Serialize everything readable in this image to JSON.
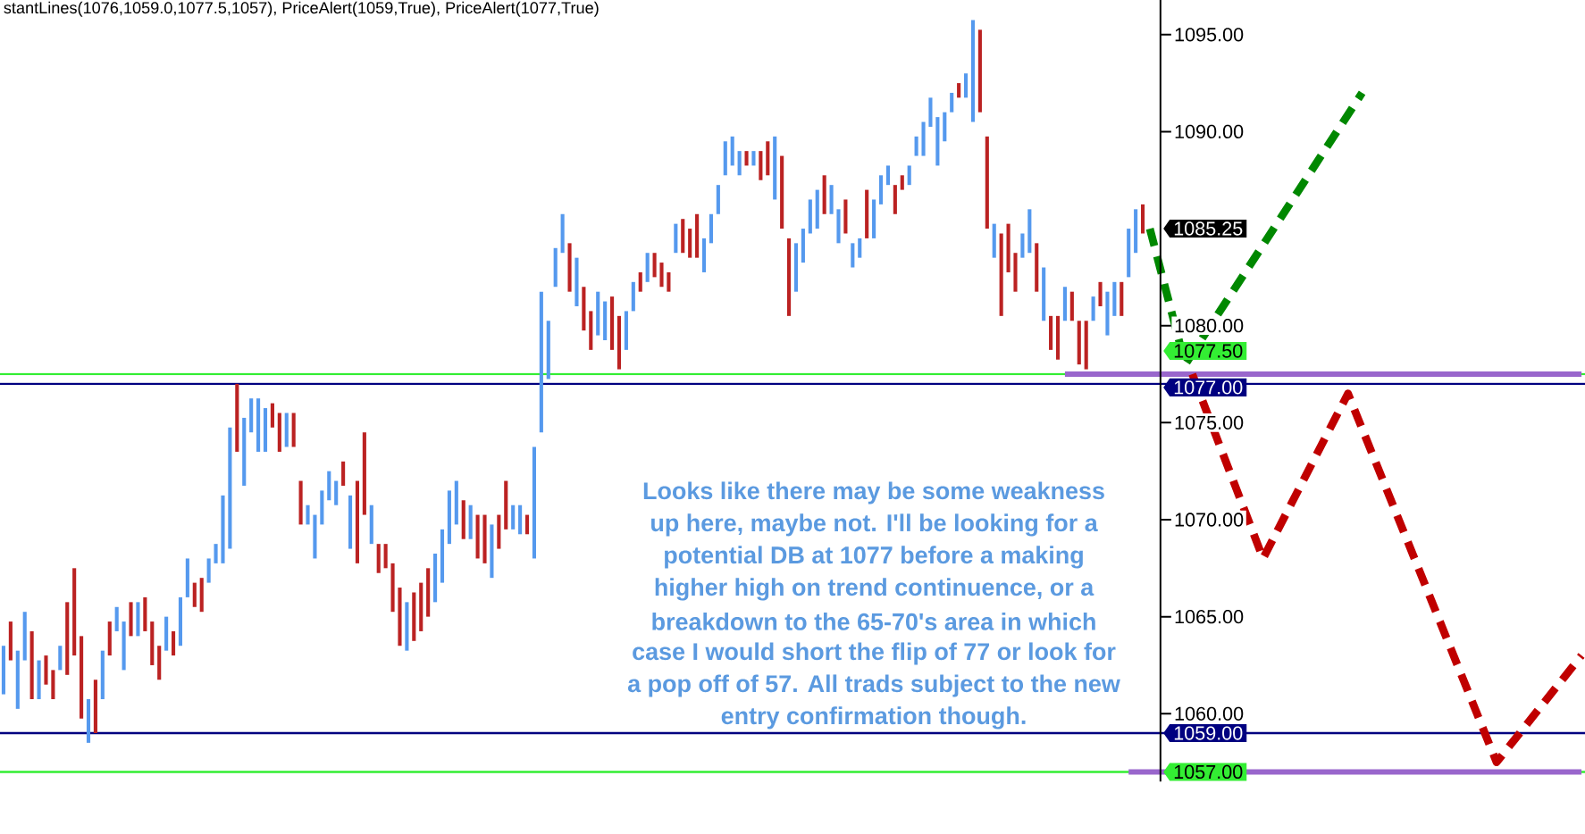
{
  "chart_data": {
    "type": "bar",
    "annotations": [
      "stantLines(1076,1059.0,1077.5,1057), PriceAlert(1059,True), PriceAlert(1077,True)",
      "Looks like there may be some weakness",
      "up here, maybe not. I'll be looking for a",
      "potential DB at 1077 before a making",
      "higher high on trend continuence, or a",
      "breakdown to the 65-70's area in which",
      "case I would short the flip of 77 or look for",
      "a pop off of 57. All trads subject to the new",
      "entry confirmation though.",
      "1085.25"
    ],
    "categories": [
      null,
      null,
      null,
      null,
      null,
      null,
      null,
      null,
      null,
      null,
      null,
      null,
      null,
      null,
      null,
      null,
      null,
      null,
      null,
      null,
      null,
      null,
      null,
      null,
      null,
      null,
      null,
      null,
      null,
      null,
      null,
      null,
      null,
      null,
      null,
      null,
      null,
      null,
      null,
      null,
      null,
      null,
      null,
      null,
      null,
      null,
      null,
      null,
      null,
      null,
      null,
      null,
      null,
      null,
      null,
      null,
      null,
      null,
      null,
      null,
      null,
      null,
      null,
      null,
      null,
      null,
      null,
      null,
      null,
      null,
      null,
      null,
      null,
      null,
      null,
      null,
      null,
      null,
      null,
      null,
      null,
      null,
      null,
      null,
      null,
      null,
      null,
      null,
      null,
      null,
      null,
      null,
      null,
      null,
      null,
      null,
      null,
      null,
      null,
      null,
      null,
      null,
      null,
      null,
      null,
      null,
      null,
      null,
      null,
      null,
      null,
      null,
      null,
      null,
      null,
      null,
      null,
      null,
      null,
      null,
      null,
      null,
      null,
      null,
      null,
      null,
      null,
      null,
      null,
      null,
      null,
      null,
      null,
      null,
      null,
      null,
      null,
      null,
      null,
      null,
      null,
      null,
      null,
      null,
      null,
      null,
      null,
      null,
      null,
      null,
      null,
      null,
      null,
      null,
      null,
      null,
      null,
      null,
      null,
      null,
      null,
      null,
      null,
      null,
      null,
      null,
      null,
      null,
      null,
      null,
      null,
      null,
      null,
      null,
      null,
      null,
      null,
      null,
      null,
      null,
      null,
      null,
      null,
      null,
      null,
      null,
      null,
      null,
      null,
      null,
      null,
      null,
      null,
      null,
      null,
      null,
      null,
      null,
      null,
      null,
      null,
      null,
      null,
      null,
      null,
      null,
      null,
      null,
      null,
      null,
      null,
      null,
      null,
      null,
      null,
      null,
      null,
      null,
      null,
      null,
      null,
      null,
      null,
      null
    ],
    "ylim": [
      1056.5,
      1097
    ],
    "yticks": [
      {
        "value": 1060,
        "label": "1060.00"
      },
      {
        "value": 1065,
        "label": "1065.00"
      },
      {
        "value": 1070,
        "label": "1070.00"
      },
      {
        "value": 1075,
        "label": "1075.00"
      },
      {
        "value": 1080,
        "label": "1080.00"
      },
      {
        "value": 1090,
        "label": "1090.00"
      },
      {
        "value": 1095,
        "label": "1095.00"
      }
    ],
    "tick_labels": "y",
    "ref_lines": [
      {
        "axis": "y",
        "value": 1077.5,
        "label": "1077.50",
        "color": "#33ee33"
      },
      {
        "axis": "y",
        "value": 1077,
        "label": "1077.00",
        "color": "#000080"
      },
      {
        "axis": "y",
        "value": 1059,
        "label": "1059.00",
        "color": "#000080"
      },
      {
        "axis": "y",
        "value": 1057,
        "label": "1057.00",
        "color": "#33ee33"
      }
    ],
    "series": [
      {
        "base": [
          1061,
          1062.75,
          1060.25,
          1062.75,
          1060.75,
          1060.75,
          1061.5,
          1060.75,
          1062.25,
          1062,
          1063,
          1059.75,
          1058.5,
          1059,
          1060.75,
          1063,
          1064.25,
          1062.25,
          1064,
          1064,
          1064.25,
          1062.5,
          1061.75,
          1063.25,
          1063,
          1063.5,
          1066,
          1065.5,
          1065.25,
          1066.75,
          1067.75,
          1067.75,
          1068.5,
          1073.5,
          1071.75,
          1074.5,
          1073.5,
          1073.5,
          1074.75,
          1073.5,
          1073.75,
          1073.75,
          1069.75,
          1069.75,
          1068,
          1069.75,
          1071,
          1070.75,
          1071.75,
          1068.5,
          1067.75,
          1070.25,
          1068.75,
          1067.25,
          1067.5,
          1065.25,
          1063.5,
          1063.25,
          1063.75,
          1064.25,
          1065,
          1065.75,
          1066.75,
          1068.75,
          1069.75,
          1069,
          1069,
          1068,
          1067.75,
          1067,
          1068.5,
          1069.5,
          1069.5,
          1069.25,
          1069.25,
          1068,
          1074.5,
          1077.25,
          1082,
          1083.75,
          1081.75,
          1081,
          1079.75,
          1078.75,
          1079.5,
          1079.25,
          1078.75,
          1077.75,
          1078.75,
          1080.75,
          1081.75,
          1082.25,
          1082.5,
          1082,
          1081.75,
          1083.75,
          1083.75,
          1083.5,
          1083.5,
          1082.75,
          1084.25,
          1085.75,
          1087.75,
          1088.25,
          1087.75,
          1088.25,
          1088.25,
          1087.5,
          1087.75,
          1086.5,
          1085,
          1080.5,
          1081.75,
          1083.25,
          1084.75,
          1085,
          1085.75,
          1085.75,
          1084.25,
          1084.75,
          1083,
          1083.5,
          1084.5,
          1084.5,
          1086.25,
          1087.25,
          1085.75,
          1087,
          1087.25,
          1088.75,
          1088.75,
          1090.25,
          1088.25,
          1089.5,
          1091,
          1091.75,
          1091.75,
          1090.5,
          1091,
          1085,
          1083.5,
          1080.5,
          1082.75,
          1081.75,
          1083.5,
          1083.75,
          1081.75,
          1080.25,
          1078.75,
          1078.25,
          1080.25,
          1080.25,
          1078,
          1077.75,
          1080.25,
          1081,
          1079.5,
          1080.5,
          1080.5,
          1082.5,
          1083.75,
          1084.75,
          null,
          null,
          null,
          null,
          null,
          null,
          null,
          null,
          null,
          null,
          null,
          null,
          null,
          null,
          null,
          null,
          null,
          null,
          null,
          null,
          null,
          null,
          null,
          null,
          null,
          null,
          null,
          null,
          null,
          null,
          null,
          null,
          null,
          null,
          null,
          null,
          null,
          null,
          null,
          null,
          null,
          null,
          null,
          null,
          null,
          null,
          null,
          null,
          null,
          null,
          null,
          null,
          null,
          null,
          null,
          null,
          null,
          null,
          null,
          null,
          null,
          null
        ],
        "values": [
          2.5,
          2,
          3,
          2.5,
          3.5,
          2,
          1.5,
          1.5,
          1.25,
          3.75,
          4.5,
          4.25,
          2.25,
          2.75,
          2.5,
          1.75,
          1.25,
          2.5,
          1.75,
          1.75,
          1.75,
          2.25,
          1.75,
          1.75,
          1.25,
          2.5,
          2,
          1.25,
          1.75,
          1.25,
          1,
          3.5,
          6.25,
          3.5,
          3.5,
          1.75,
          2.75,
          2.25,
          1.25,
          2,
          1.75,
          1.75,
          2.25,
          1,
          2.25,
          1.75,
          1.5,
          1.25,
          1.25,
          2.75,
          4.25,
          4.25,
          2,
          1.5,
          1.25,
          2.5,
          3,
          2.5,
          2.5,
          2.5,
          2.5,
          2.5,
          2.75,
          2.75,
          2.25,
          2,
          1.75,
          2.25,
          2.5,
          2.75,
          1.75,
          2.5,
          1.25,
          1.5,
          1,
          5.75,
          7.25,
          3,
          2,
          2,
          2.5,
          2.5,
          2.25,
          2,
          2.25,
          2,
          2.75,
          2.75,
          2,
          1.5,
          1,
          1.5,
          1.25,
          1.25,
          1,
          1.5,
          1.75,
          1.5,
          2.25,
          1.75,
          1.5,
          1.5,
          1.75,
          1.5,
          1.25,
          0.75,
          0.75,
          1.5,
          1.75,
          3.25,
          3.75,
          4,
          2.5,
          1.75,
          1.75,
          2,
          2,
          1.5,
          1.75,
          1.75,
          1.25,
          1,
          2.5,
          2,
          1.5,
          1,
          1.5,
          0.75,
          1,
          1,
          1.75,
          1.5,
          2.5,
          1.5,
          1,
          0.75,
          1.25,
          5.25,
          4.25,
          4.75,
          1.75,
          4.25,
          2.5,
          2,
          1.25,
          2.25,
          2.5,
          2.75,
          1.75,
          2.25,
          1.75,
          1.5,
          2.25,
          2.5,
          1.25,
          1.25,
          2.25,
          1.75,
          1.75,
          2.5,
          2.25,
          1.5,
          null,
          null,
          null,
          null,
          null,
          null,
          null,
          null,
          null,
          null,
          null,
          null,
          null,
          null,
          null,
          null,
          null,
          null,
          null,
          null,
          null,
          null,
          null,
          null,
          null,
          null,
          null,
          null,
          null,
          null,
          null,
          null,
          null,
          null,
          null,
          null,
          null,
          null,
          null,
          null,
          null,
          null,
          null,
          null,
          null,
          null,
          null,
          null,
          null,
          null,
          null,
          null,
          null,
          null,
          null,
          null,
          null,
          null,
          null,
          null,
          null,
          null
        ],
        "colors": [
          "#5599ee",
          "#bb2222",
          "#5599ee",
          "#5599ee",
          "#bb2222",
          "#5599ee",
          "#bb2222",
          "#bb2222",
          "#5599ee",
          "#bb2222",
          "#bb2222",
          "#bb2222",
          "#5599ee",
          "#bb2222",
          "#5599ee",
          "#bb2222",
          "#5599ee",
          "#5599ee",
          "#bb2222",
          "#5599ee",
          "#bb2222",
          "#bb2222",
          "#bb2222",
          "#5599ee",
          "#bb2222",
          "#5599ee",
          "#5599ee",
          "#bb2222",
          "#bb2222",
          "#5599ee",
          "#5599ee",
          "#5599ee",
          "#5599ee",
          "#bb2222",
          "#5599ee",
          "#5599ee",
          "#5599ee",
          "#5599ee",
          "#bb2222",
          "#bb2222",
          "#5599ee",
          "#bb2222",
          "#bb2222",
          "#5599ee",
          "#5599ee",
          "#5599ee",
          "#5599ee",
          "#5599ee",
          "#bb2222",
          "#5599ee",
          "#bb2222",
          "#bb2222",
          "#5599ee",
          "#bb2222",
          "#bb2222",
          "#bb2222",
          "#bb2222",
          "#5599ee",
          "#bb2222",
          "#bb2222",
          "#bb2222",
          "#5599ee",
          "#5599ee",
          "#5599ee",
          "#5599ee",
          "#bb2222",
          "#5599ee",
          "#bb2222",
          "#bb2222",
          "#5599ee",
          "#bb2222",
          "#bb2222",
          "#5599ee",
          "#5599ee",
          "#bb2222",
          "#5599ee",
          "#5599ee",
          "#5599ee",
          "#5599ee",
          "#5599ee",
          "#bb2222",
          "#5599ee",
          "#bb2222",
          "#bb2222",
          "#5599ee",
          "#5599ee",
          "#bb2222",
          "#bb2222",
          "#5599ee",
          "#5599ee",
          "#bb2222",
          "#5599ee",
          "#bb2222",
          "#bb2222",
          "#bb2222",
          "#5599ee",
          "#bb2222",
          "#bb2222",
          "#bb2222",
          "#5599ee",
          "#5599ee",
          "#5599ee",
          "#5599ee",
          "#5599ee",
          "#5599ee",
          "#bb2222",
          "#5599ee",
          "#bb2222",
          "#bb2222",
          "#5599ee",
          "#bb2222",
          "#bb2222",
          "#5599ee",
          "#5599ee",
          "#5599ee",
          "#5599ee",
          "#bb2222",
          "#5599ee",
          "#5599ee",
          "#bb2222",
          "#5599ee",
          "#5599ee",
          "#bb2222",
          "#5599ee",
          "#5599ee",
          "#5599ee",
          "#bb2222",
          "#bb2222",
          "#5599ee",
          "#5599ee",
          "#5599ee",
          "#5599ee",
          "#5599ee",
          "#5599ee",
          "#5599ee",
          "#bb2222",
          "#5599ee",
          "#5599ee",
          "#bb2222",
          "#bb2222",
          "#5599ee",
          "#bb2222",
          "#bb2222",
          "#bb2222",
          "#5599ee",
          "#5599ee",
          "#bb2222",
          "#5599ee",
          "#bb2222",
          "#bb2222",
          "#5599ee",
          "#bb2222",
          "#bb2222",
          "#bb2222",
          "#5599ee",
          "#bb2222",
          "#5599ee",
          "#5599ee",
          "#bb2222",
          "#5599ee",
          "#5599ee",
          "#bb2222",
          null,
          null,
          null,
          null,
          null,
          null,
          null,
          null,
          null,
          null,
          null,
          null,
          null,
          null,
          null,
          null,
          null,
          null,
          null,
          null,
          null,
          null,
          null,
          null,
          null,
          null,
          null,
          null,
          null,
          null,
          null,
          null,
          null,
          null,
          null,
          null,
          null,
          null,
          null,
          null,
          null,
          null,
          null,
          null,
          null,
          null,
          null,
          null,
          null,
          null,
          null,
          null,
          null,
          null,
          null,
          null,
          null,
          null,
          null,
          null,
          null,
          null
        ]
      },
      {
        "type": "line",
        "color": "#9966cc",
        "line_style": "solid",
        "values": [
          null,
          null,
          null,
          null,
          null,
          null,
          null,
          null,
          null,
          null,
          null,
          null,
          null,
          null,
          null,
          null,
          null,
          null,
          null,
          null,
          null,
          null,
          null,
          null,
          null,
          null,
          null,
          null,
          null,
          null,
          null,
          null,
          null,
          null,
          null,
          null,
          null,
          null,
          null,
          null,
          null,
          null,
          null,
          null,
          null,
          null,
          null,
          null,
          null,
          null,
          null,
          null,
          null,
          null,
          null,
          null,
          null,
          null,
          null,
          null,
          null,
          null,
          null,
          null,
          null,
          null,
          null,
          null,
          null,
          null,
          null,
          null,
          null,
          null,
          null,
          null,
          null,
          null,
          null,
          null,
          null,
          null,
          null,
          null,
          null,
          null,
          null,
          null,
          null,
          null,
          null,
          null,
          null,
          null,
          null,
          null,
          null,
          null,
          null,
          null,
          null,
          null,
          null,
          null,
          null,
          null,
          null,
          null,
          null,
          null,
          null,
          null,
          null,
          null,
          null,
          null,
          null,
          null,
          null,
          null,
          null,
          null,
          null,
          null,
          null,
          null,
          null,
          null,
          null,
          null,
          null,
          null,
          null,
          null,
          null,
          null,
          null,
          null,
          null,
          null,
          null,
          null,
          null,
          null,
          null,
          null,
          null,
          null,
          null,
          null,
          1077.5,
          null,
          null,
          null,
          null,
          null,
          null,
          null,
          null,
          null,
          null,
          null,
          null,
          null,
          null,
          null,
          null,
          null,
          null,
          null,
          null,
          null,
          null,
          null,
          null,
          null,
          null,
          null,
          null,
          null,
          null,
          null,
          null,
          null,
          null,
          null,
          null,
          null,
          null,
          null,
          null,
          null,
          null,
          null,
          null,
          null,
          null,
          null,
          null,
          null,
          null,
          null,
          null,
          null,
          null,
          null,
          null,
          null,
          null,
          null,
          null,
          null,
          null,
          null,
          null,
          null,
          null,
          null,
          null,
          null,
          null,
          null,
          null,
          1077.5
        ]
      },
      {
        "type": "line",
        "color": "#9966cc",
        "line_style": "solid",
        "values": [
          null,
          null,
          null,
          null,
          null,
          null,
          null,
          null,
          null,
          null,
          null,
          null,
          null,
          null,
          null,
          null,
          null,
          null,
          null,
          null,
          null,
          null,
          null,
          null,
          null,
          null,
          null,
          null,
          null,
          null,
          null,
          null,
          null,
          null,
          null,
          null,
          null,
          null,
          null,
          null,
          null,
          null,
          null,
          null,
          null,
          null,
          null,
          null,
          null,
          null,
          null,
          null,
          null,
          null,
          null,
          null,
          null,
          null,
          null,
          null,
          null,
          null,
          null,
          null,
          null,
          null,
          null,
          null,
          null,
          null,
          null,
          null,
          null,
          null,
          null,
          null,
          null,
          null,
          null,
          null,
          null,
          null,
          null,
          null,
          null,
          null,
          null,
          null,
          null,
          null,
          null,
          null,
          null,
          null,
          null,
          null,
          null,
          null,
          null,
          null,
          null,
          null,
          null,
          null,
          null,
          null,
          null,
          null,
          null,
          null,
          null,
          null,
          null,
          null,
          null,
          null,
          null,
          null,
          null,
          null,
          null,
          null,
          null,
          null,
          null,
          null,
          null,
          null,
          null,
          null,
          null,
          null,
          null,
          null,
          null,
          null,
          null,
          null,
          null,
          null,
          null,
          null,
          null,
          null,
          null,
          null,
          null,
          null,
          null,
          null,
          null,
          null,
          null,
          null,
          null,
          null,
          null,
          null,
          null,
          1057,
          null,
          null,
          null,
          null,
          null,
          null,
          null,
          null,
          null,
          null,
          null,
          null,
          null,
          null,
          null,
          null,
          null,
          null,
          null,
          null,
          null,
          null,
          null,
          null,
          null,
          null,
          null,
          null,
          null,
          null,
          null,
          null,
          null,
          null,
          null,
          null,
          null,
          null,
          null,
          null,
          null,
          null,
          null,
          null,
          null,
          null,
          null,
          null,
          null,
          null,
          null,
          null,
          null,
          null,
          null,
          null,
          null,
          null,
          null,
          null,
          null,
          null,
          null,
          1057
        ]
      },
      {
        "type": "line",
        "color": "#008800",
        "line_style": "dashed",
        "values": [
          null,
          null,
          null,
          null,
          null,
          null,
          null,
          null,
          null,
          null,
          null,
          null,
          null,
          null,
          null,
          null,
          null,
          null,
          null,
          null,
          null,
          null,
          null,
          null,
          null,
          null,
          null,
          null,
          null,
          null,
          null,
          null,
          null,
          null,
          null,
          null,
          null,
          null,
          null,
          null,
          null,
          null,
          null,
          null,
          null,
          null,
          null,
          null,
          null,
          null,
          null,
          null,
          null,
          null,
          null,
          null,
          null,
          null,
          null,
          null,
          null,
          null,
          null,
          null,
          null,
          null,
          null,
          null,
          null,
          null,
          null,
          null,
          null,
          null,
          null,
          null,
          null,
          null,
          null,
          null,
          null,
          null,
          null,
          null,
          null,
          null,
          null,
          null,
          null,
          null,
          null,
          null,
          null,
          null,
          null,
          null,
          null,
          null,
          null,
          null,
          null,
          null,
          null,
          null,
          null,
          null,
          null,
          null,
          null,
          null,
          null,
          null,
          null,
          null,
          null,
          null,
          null,
          null,
          null,
          null,
          null,
          null,
          null,
          null,
          null,
          null,
          null,
          null,
          null,
          null,
          null,
          null,
          null,
          null,
          null,
          null,
          null,
          null,
          null,
          null,
          null,
          null,
          null,
          null,
          null,
          null,
          null,
          null,
          null,
          null,
          null,
          null,
          null,
          null,
          null,
          null,
          null,
          null,
          null,
          null,
          null,
          null,
          1085,
          null,
          null,
          null,
          null,
          1078,
          null,
          null,
          null,
          null,
          null,
          null,
          null,
          null,
          null,
          null,
          null,
          null,
          null,
          null,
          null,
          null,
          null,
          null,
          null,
          null,
          null,
          null,
          null,
          null,
          1092,
          null,
          null,
          null,
          null,
          null,
          null,
          null,
          null,
          null,
          null,
          null,
          null,
          null,
          null,
          null,
          null,
          null,
          null,
          null,
          null,
          null,
          null,
          null,
          null,
          null,
          null,
          null,
          null,
          null,
          null,
          null
        ]
      },
      {
        "type": "line",
        "color": "#c00000",
        "line_style": "dashed",
        "values": [
          null,
          null,
          null,
          null,
          null,
          null,
          null,
          null,
          null,
          null,
          null,
          null,
          null,
          null,
          null,
          null,
          null,
          null,
          null,
          null,
          null,
          null,
          null,
          null,
          null,
          null,
          null,
          null,
          null,
          null,
          null,
          null,
          null,
          null,
          null,
          null,
          null,
          null,
          null,
          null,
          null,
          null,
          null,
          null,
          null,
          null,
          null,
          null,
          null,
          null,
          null,
          null,
          null,
          null,
          null,
          null,
          null,
          null,
          null,
          null,
          null,
          null,
          null,
          null,
          null,
          null,
          null,
          null,
          null,
          null,
          null,
          null,
          null,
          null,
          null,
          null,
          null,
          null,
          null,
          null,
          null,
          null,
          null,
          null,
          null,
          null,
          null,
          null,
          null,
          null,
          null,
          null,
          null,
          null,
          null,
          null,
          null,
          null,
          null,
          null,
          null,
          null,
          null,
          null,
          null,
          null,
          null,
          null,
          null,
          null,
          null,
          null,
          null,
          null,
          null,
          null,
          null,
          null,
          null,
          null,
          null,
          null,
          null,
          null,
          null,
          null,
          null,
          null,
          null,
          null,
          null,
          null,
          null,
          null,
          null,
          null,
          null,
          null,
          null,
          null,
          null,
          null,
          null,
          null,
          null,
          null,
          null,
          null,
          null,
          null,
          null,
          null,
          null,
          null,
          null,
          null,
          null,
          null,
          null,
          null,
          null,
          null,
          null,
          null,
          null,
          null,
          null,
          null,
          1077.5,
          null,
          null,
          null,
          null,
          null,
          null,
          null,
          null,
          null,
          1068,
          null,
          null,
          null,
          null,
          null,
          null,
          null,
          null,
          null,
          null,
          null,
          1076.5,
          null,
          null,
          null,
          null,
          null,
          null,
          null,
          null,
          null,
          null,
          null,
          null,
          null,
          null,
          null,
          null,
          null,
          null,
          null,
          null,
          1057.5,
          null,
          null,
          null,
          null,
          null,
          null,
          null,
          null,
          null,
          null,
          null,
          1063
        ]
      }
    ]
  }
}
